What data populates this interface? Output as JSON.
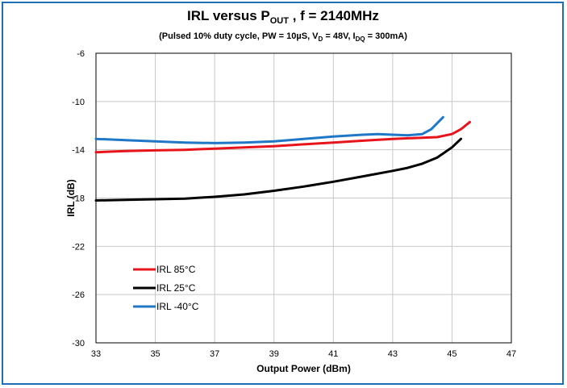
{
  "chart_data": {
    "type": "line",
    "title_parts": {
      "prefix": "IRL versus P",
      "sub": "OUT",
      "suffix": " , f = 2140MHz"
    },
    "subtitle_parts": {
      "a": "(Pulsed 10% duty cycle, PW = 10µS, V",
      "a_sub": "D",
      "b": " = 48V, I",
      "b_sub": "DQ",
      "c": " = 300mA)"
    },
    "xlabel": "Output Power (dBm)",
    "ylabel": "IRL (dB)",
    "xlim": [
      33,
      47
    ],
    "ylim": [
      -30,
      -6
    ],
    "xticks": [
      33,
      35,
      37,
      39,
      41,
      43,
      45,
      47
    ],
    "yticks": [
      -6,
      -10,
      -14,
      -18,
      -22,
      -26,
      -30
    ],
    "grid": true,
    "legend_position": "bottom-left",
    "series": [
      {
        "name": "IRL 85°C",
        "color": "#e8141c",
        "x": [
          33,
          34,
          35,
          36,
          37,
          38,
          39,
          40,
          41,
          42,
          43,
          44,
          44.5,
          45,
          45.3,
          45.6
        ],
        "y": [
          -14.2,
          -14.1,
          -14.05,
          -14.0,
          -13.9,
          -13.8,
          -13.7,
          -13.55,
          -13.4,
          -13.25,
          -13.1,
          -13.0,
          -12.95,
          -12.7,
          -12.3,
          -11.7
        ]
      },
      {
        "name": "IRL 25°C",
        "color": "#000000",
        "x": [
          33,
          34,
          35,
          36,
          37,
          38,
          39,
          40,
          41,
          42,
          43,
          43.5,
          44,
          44.5,
          45,
          45.3
        ],
        "y": [
          -18.2,
          -18.15,
          -18.1,
          -18.05,
          -17.9,
          -17.7,
          -17.4,
          -17.05,
          -16.65,
          -16.2,
          -15.75,
          -15.5,
          -15.15,
          -14.65,
          -13.8,
          -13.1
        ]
      },
      {
        "name": "IRL -40°C",
        "color": "#1f77c8",
        "x": [
          33,
          34,
          35,
          36,
          37,
          38,
          39,
          40,
          41,
          42,
          42.5,
          43,
          43.5,
          44,
          44.3,
          44.5,
          44.7
        ],
        "y": [
          -13.1,
          -13.2,
          -13.3,
          -13.4,
          -13.45,
          -13.4,
          -13.3,
          -13.1,
          -12.9,
          -12.75,
          -12.7,
          -12.75,
          -12.8,
          -12.7,
          -12.3,
          -11.8,
          -11.3
        ]
      }
    ]
  }
}
